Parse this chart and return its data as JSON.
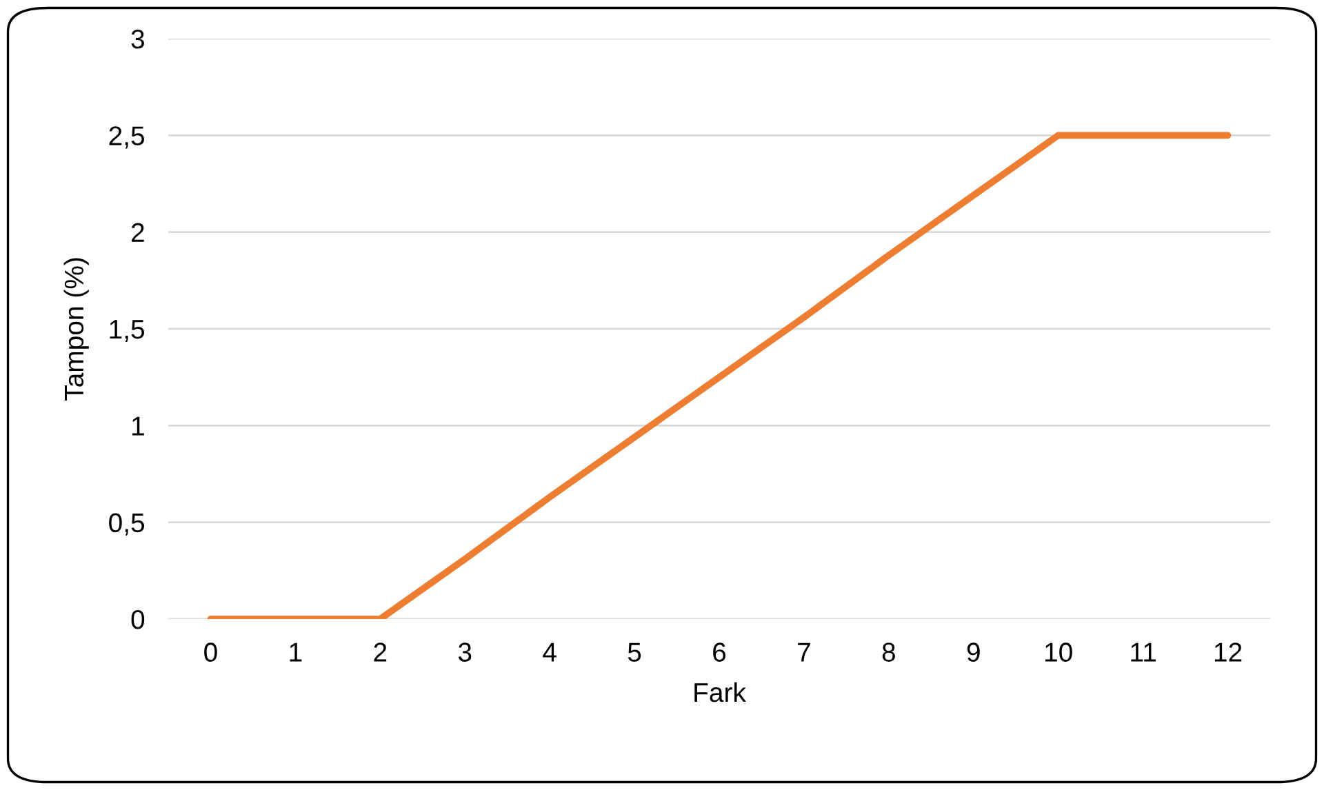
{
  "chart_data": {
    "type": "line",
    "xlabel": "Fark",
    "ylabel": "Tampon (%)",
    "categories": [
      "0",
      "1",
      "2",
      "3",
      "4",
      "5",
      "6",
      "7",
      "8",
      "9",
      "10",
      "11",
      "12"
    ],
    "series": [
      {
        "color": "#ed7d31",
        "values": [
          0,
          0,
          0,
          0.31,
          0.63,
          0.94,
          1.25,
          1.56,
          1.88,
          2.19,
          2.5,
          2.5,
          2.5
        ]
      }
    ],
    "ylim": [
      0,
      3
    ],
    "yticks": [
      0,
      {
        "value": 0.5,
        "label": "0,5"
      },
      1,
      {
        "value": 1.5,
        "label": "1,5"
      },
      2,
      {
        "value": 2.5,
        "label": "2,5"
      },
      3
    ],
    "grid": "y",
    "legend": false,
    "marker": "none",
    "line_style": "solid"
  }
}
